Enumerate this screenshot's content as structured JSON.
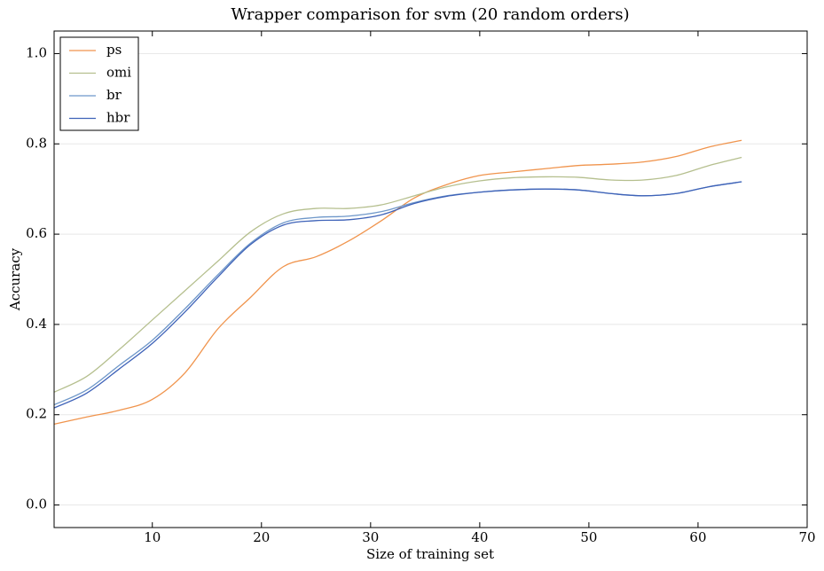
{
  "chart_data": {
    "type": "line",
    "title": "Wrapper comparison for svm (20 random orders)",
    "x_label": "Size of training set",
    "y_label": "Accuracy",
    "x": [
      1,
      4,
      7,
      10,
      13,
      16,
      19,
      22,
      25,
      28,
      31,
      34,
      37,
      40,
      43,
      46,
      49,
      52,
      55,
      58,
      61,
      64
    ],
    "series": [
      {
        "name": "ps",
        "color": "#f0944d",
        "values": [
          0.179,
          0.195,
          0.21,
          0.234,
          0.293,
          0.39,
          0.46,
          0.528,
          0.55,
          0.585,
          0.63,
          0.68,
          0.71,
          0.73,
          0.738,
          0.745,
          0.752,
          0.755,
          0.76,
          0.772,
          0.793,
          0.808
        ]
      },
      {
        "name": "omi",
        "color": "#b5bf8e",
        "values": [
          0.25,
          0.285,
          0.345,
          0.41,
          0.475,
          0.54,
          0.605,
          0.645,
          0.657,
          0.657,
          0.665,
          0.685,
          0.705,
          0.718,
          0.725,
          0.727,
          0.726,
          0.72,
          0.72,
          0.73,
          0.752,
          0.77
        ]
      },
      {
        "name": "br",
        "color": "#6e97c9",
        "values": [
          0.222,
          0.255,
          0.31,
          0.365,
          0.435,
          0.51,
          0.58,
          0.625,
          0.637,
          0.64,
          0.65,
          0.67,
          0.685,
          0.693,
          0.698,
          0.7,
          0.698,
          0.69,
          0.685,
          0.69,
          0.705,
          0.716
        ]
      },
      {
        "name": "hbr",
        "color": "#3e62b8",
        "values": [
          0.215,
          0.248,
          0.302,
          0.358,
          0.428,
          0.505,
          0.577,
          0.62,
          0.63,
          0.632,
          0.643,
          0.668,
          0.684,
          0.693,
          0.698,
          0.7,
          0.698,
          0.69,
          0.685,
          0.69,
          0.705,
          0.716
        ]
      }
    ],
    "xlim": [
      1,
      70
    ],
    "xticks": [
      10,
      20,
      30,
      40,
      50,
      60,
      70
    ],
    "ylim": [
      -0.05,
      1.05
    ],
    "yticks": [
      {
        "value": 0,
        "label": "0.0"
      },
      {
        "value": 0.2,
        "label": "0.2"
      },
      {
        "value": 0.4,
        "label": "0.4"
      },
      {
        "value": 0.6,
        "label": "0.6"
      },
      {
        "value": 0.8,
        "label": "0.8"
      },
      {
        "value": 1,
        "label": "1.0"
      }
    ],
    "grid": true,
    "legend": "upper-left"
  }
}
